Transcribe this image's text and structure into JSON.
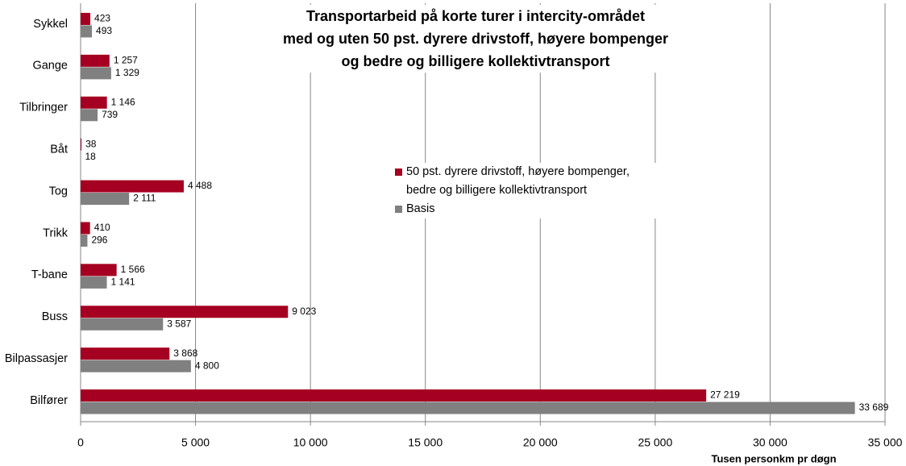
{
  "chart_data": {
    "type": "hbar",
    "title": "Transportarbeid på korte turer i intercity-området\nmed og uten 50 pst. dyrere drivstoff, høyere bompenger\nog bedre og billigere kollektivtransport",
    "x_label": "Tusen personkm pr døgn",
    "categories": [
      "Sykkel",
      "Gange",
      "Tilbringer",
      "Båt",
      "Tog",
      "Trikk",
      "T-bane",
      "Buss",
      "Bilpassasjer",
      "Bilfører"
    ],
    "series": [
      {
        "name": "50 pst. dyrere drivstoff, høyere bompenger,\nbedre og billigere kollektivtransport",
        "color": "#a50021",
        "values": [
          423,
          1257,
          1146,
          38,
          4488,
          410,
          1566,
          9023,
          3868,
          27219
        ],
        "value_labels": [
          "423",
          "1 257",
          "1 146",
          "38",
          "4 488",
          "410",
          "1 566",
          "9 023",
          "3 868",
          "27 219"
        ]
      },
      {
        "name": "Basis",
        "color": "#808080",
        "values": [
          493,
          1329,
          739,
          18,
          2111,
          296,
          1141,
          3587,
          4800,
          33689
        ],
        "value_labels": [
          "493",
          "1 329",
          "739",
          "18",
          "2 111",
          "296",
          "1 141",
          "3 587",
          "4 800",
          "33 689"
        ]
      }
    ],
    "xlim": [
      0,
      35000
    ],
    "xticks": [
      0,
      {
        "value": 5000,
        "label": "5 000"
      },
      {
        "value": 10000,
        "label": "10 000"
      },
      {
        "value": 15000,
        "label": "15 000"
      },
      {
        "value": 20000,
        "label": "20 000"
      },
      {
        "value": 25000,
        "label": "25 000"
      },
      {
        "value": 30000,
        "label": "30 000"
      },
      {
        "value": 35000,
        "label": "35 000"
      }
    ],
    "grid": true
  }
}
